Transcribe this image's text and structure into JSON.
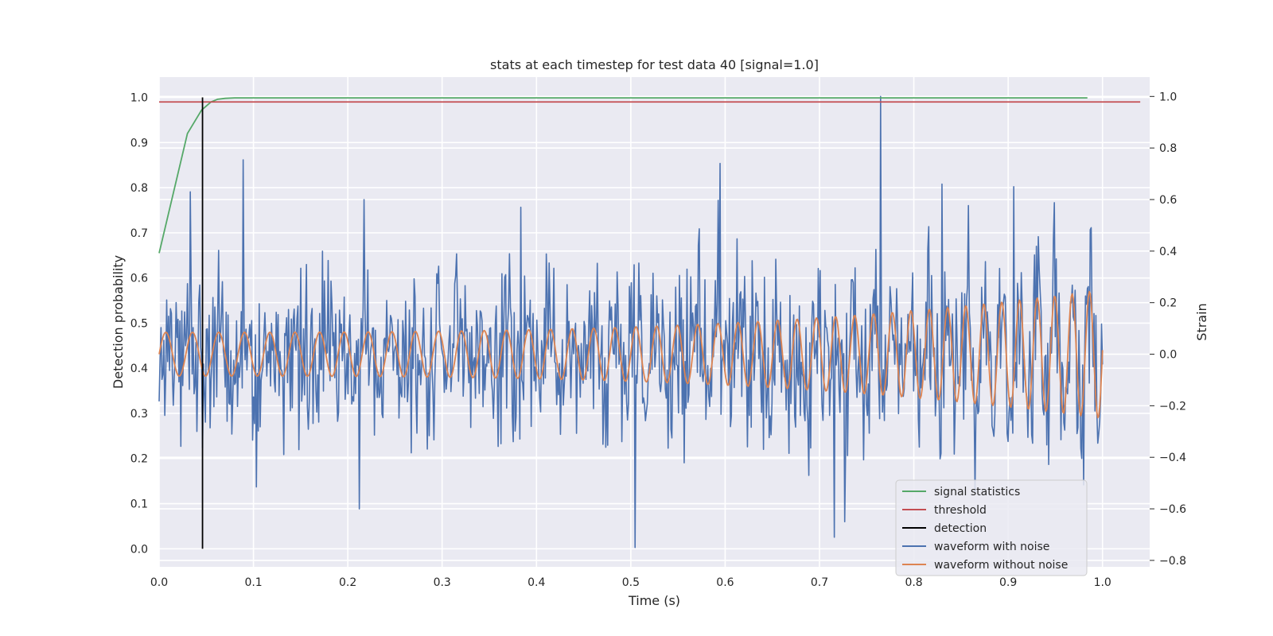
{
  "chart_data": {
    "type": "line",
    "title": "stats at each timestep for test data 40 [signal=1.0]",
    "xlabel": "Time (s)",
    "ylabel_left": "Detection probability",
    "ylabel_right": "Strain",
    "xlim": [
      0.0,
      1.05
    ],
    "ylim_left": [
      -0.04,
      1.045
    ],
    "ylim_right": [
      -0.825,
      1.075
    ],
    "x_ticks": [
      "0.0",
      "0.1",
      "0.2",
      "0.3",
      "0.4",
      "0.5",
      "0.6",
      "0.7",
      "0.8",
      "0.9",
      "1.0"
    ],
    "y_ticks_left": [
      "0.0",
      "0.1",
      "0.2",
      "0.3",
      "0.4",
      "0.5",
      "0.6",
      "0.7",
      "0.8",
      "0.9",
      "1.0"
    ],
    "y_ticks_right": [
      "−0.8",
      "−0.6",
      "−0.4",
      "−0.2",
      "0.0",
      "0.2",
      "0.4",
      "0.6",
      "0.8",
      "1.0"
    ],
    "grid": true,
    "legend_position": "lower-right",
    "series": [
      {
        "name": "signal statistics",
        "axis": "left",
        "color": "#55a868",
        "x": [
          0.0,
          0.03,
          0.045,
          0.055,
          0.062,
          0.07,
          0.08,
          0.1,
          0.2,
          0.4,
          0.6,
          0.8,
          0.984
        ],
        "y": [
          0.655,
          0.92,
          0.972,
          0.99,
          0.996,
          0.998,
          0.999,
          0.999,
          0.999,
          0.999,
          0.999,
          0.999,
          0.999
        ]
      },
      {
        "name": "threshold",
        "axis": "left",
        "color": "#c44e52",
        "x": [
          0.0,
          1.04
        ],
        "y": [
          0.99,
          0.99
        ]
      },
      {
        "name": "detection",
        "axis": "left",
        "color": "#000000",
        "x": [
          0.046,
          0.046
        ],
        "y": [
          0.0,
          1.0
        ]
      },
      {
        "name": "waveform with noise",
        "axis": "right",
        "color": "#4c72b0",
        "n_points": 1000,
        "t_start": 0.0,
        "t_end": 1.0,
        "noise_std": 0.17,
        "y_min": -0.75,
        "y_max": 1.0,
        "peaks": [
          {
            "x": 0.033,
            "y": 0.63
          },
          {
            "x": 0.217,
            "y": 0.6
          },
          {
            "x": 0.383,
            "y": 0.57
          },
          {
            "x": 0.595,
            "y": 0.74
          },
          {
            "x": 0.765,
            "y": 1.0
          },
          {
            "x": 0.83,
            "y": 0.66
          },
          {
            "x": 0.906,
            "y": 0.65
          },
          {
            "x": 0.505,
            "y": -0.75
          },
          {
            "x": 0.212,
            "y": -0.6
          },
          {
            "x": 0.716,
            "y": -0.71
          },
          {
            "x": 0.727,
            "y": -0.65
          }
        ]
      },
      {
        "name": "waveform without noise",
        "axis": "right",
        "color": "#dd8452",
        "n_points": 1000,
        "t_start": 0.0,
        "t_end": 1.0,
        "amplitude_start": 0.085,
        "amplitude_end": 0.25,
        "frequency_start_hz": 35,
        "frequency_end_hz": 55
      }
    ]
  },
  "style": {
    "axes_facecolor": "#eaeaf2",
    "grid_color": "#ffffff",
    "text_color": "#262626"
  }
}
